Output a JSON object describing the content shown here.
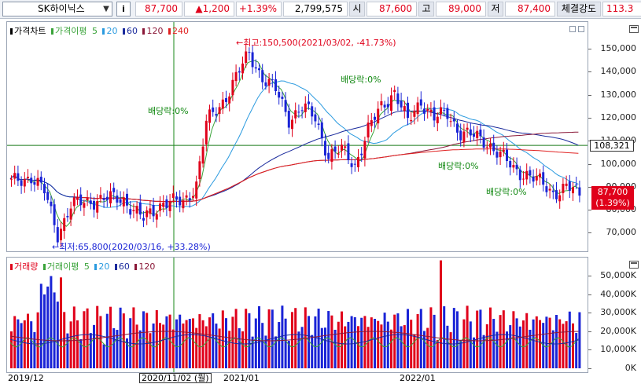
{
  "quote": {
    "stock_name": "SK하이닉스",
    "info_button": "i",
    "price": "87,700",
    "change": "▲1,200",
    "change_pct": "+1.39%",
    "volume": "2,799,575",
    "open_label": "시",
    "open": "87,600",
    "high_label": "고",
    "high": "89,000",
    "low_label": "저",
    "low": "87,400",
    "strength_label": "체결강도",
    "strength": "113.3"
  },
  "price_panel": {
    "legend": {
      "title": "가격차트",
      "ma_label": "가격이평",
      "ma1": "5",
      "ma2": "20",
      "ma3": "60",
      "ma4": "120",
      "ma5": "240"
    },
    "annotations": {
      "high": "←최고:150,500(2021/03/02, -41.73%)",
      "low": "←최저:65,800(2020/03/16, +33.28%)",
      "dividend1": "배당락:0%",
      "dividend2": "배당락:0%",
      "dividend3": "배당락:0%",
      "dividend4": "배당락:0%"
    },
    "axis_ticks": [
      "150,000",
      "140,000",
      "130,000",
      "120,000",
      "110,000",
      "100,000",
      "90,000",
      "80,000",
      "70,000"
    ],
    "crosshair_value": "108,321",
    "current_price": "87,700",
    "current_pct": "(1.39%)"
  },
  "volume_panel": {
    "legend": {
      "title": "거래량",
      "ma_label": "거래이평",
      "ma1": "5",
      "ma2": "20",
      "ma3": "60",
      "ma4": "120"
    },
    "axis_ticks": [
      "50,000K",
      "40,000K",
      "30,000K",
      "20,000K",
      "10,000K",
      "0K"
    ]
  },
  "date_axis": {
    "labels": [
      "2019/12",
      "2021/01",
      "2022/01"
    ],
    "crosshair_date": "2020/11/02 (월)"
  },
  "colors": {
    "up": "#e0001a",
    "down": "#1a24d6",
    "ma5": "#3aa33a",
    "ma20": "#2a9adf",
    "ma60": "#1a2a9c",
    "ma120": "#8a1838",
    "ma240": "#e02020"
  }
}
